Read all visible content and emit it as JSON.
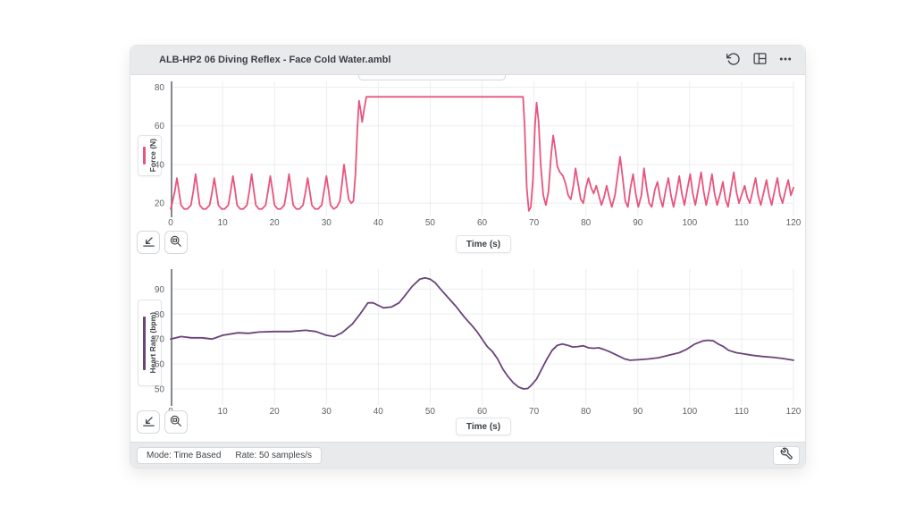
{
  "window": {
    "title": "ALB-HP2 06 Diving Reflex - Face Cold Water.ambl"
  },
  "footer": {
    "mode_label": "Mode: Time Based",
    "rate_label": "Rate: 50 samples/s"
  },
  "colors": {
    "header_bg": "#e9eaec",
    "force_accent": "#e8547e",
    "heart_rate_accent": "#6a4378"
  },
  "icons": {
    "document": "page-outline",
    "undo": "rotate-ccw-arrow",
    "layout": "split-pane",
    "more": "ellipsis",
    "autoscale": "arrow-to-axes-corner",
    "zoom_select": "magnifier-with-rect",
    "wrench": "wrench"
  },
  "chart_data": [
    {
      "type": "line",
      "ylabel": "Force (N)",
      "xlabel": "Time (s)",
      "xlim": [
        0,
        120
      ],
      "ylim": [
        15,
        83
      ],
      "x_ticks": [
        0,
        10,
        20,
        30,
        40,
        50,
        60,
        70,
        80,
        90,
        100,
        110,
        120
      ],
      "y_ticks": [
        20,
        40,
        60,
        80
      ],
      "grid": true,
      "legend_position": "left",
      "series": [
        {
          "name": "Force",
          "color": "#e8547e",
          "points": [
            [
              0,
              17
            ],
            [
              0.3,
              20
            ],
            [
              0.8,
              26
            ],
            [
              1.2,
              33
            ],
            [
              1.6,
              26
            ],
            [
              2,
              19
            ],
            [
              2.6,
              17
            ],
            [
              3.2,
              17
            ],
            [
              3.9,
              19
            ],
            [
              4.4,
              27
            ],
            [
              4.8,
              35
            ],
            [
              5.2,
              27
            ],
            [
              5.6,
              19
            ],
            [
              6.2,
              17
            ],
            [
              6.8,
              17
            ],
            [
              7.5,
              19
            ],
            [
              8,
              26
            ],
            [
              8.4,
              33
            ],
            [
              8.8,
              26
            ],
            [
              9.2,
              19
            ],
            [
              9.8,
              17
            ],
            [
              10.4,
              17
            ],
            [
              11.1,
              19
            ],
            [
              11.6,
              27
            ],
            [
              12,
              34
            ],
            [
              12.4,
              27
            ],
            [
              12.8,
              19
            ],
            [
              13.4,
              17
            ],
            [
              14,
              17
            ],
            [
              14.7,
              19
            ],
            [
              15.2,
              27
            ],
            [
              15.6,
              35
            ],
            [
              16,
              27
            ],
            [
              16.4,
              19
            ],
            [
              17,
              17
            ],
            [
              17.6,
              17
            ],
            [
              18.3,
              19
            ],
            [
              18.8,
              27
            ],
            [
              19.2,
              34
            ],
            [
              19.6,
              27
            ],
            [
              20,
              19
            ],
            [
              20.6,
              17
            ],
            [
              21.2,
              17
            ],
            [
              21.9,
              19
            ],
            [
              22.4,
              27
            ],
            [
              22.8,
              35
            ],
            [
              23.2,
              27
            ],
            [
              23.6,
              19
            ],
            [
              24.2,
              17
            ],
            [
              24.8,
              17
            ],
            [
              25.5,
              19
            ],
            [
              26,
              26
            ],
            [
              26.4,
              33
            ],
            [
              26.8,
              26
            ],
            [
              27.2,
              19
            ],
            [
              27.8,
              17
            ],
            [
              28.4,
              17
            ],
            [
              29.1,
              19
            ],
            [
              29.6,
              27
            ],
            [
              30,
              34
            ],
            [
              30.4,
              27
            ],
            [
              30.8,
              19
            ],
            [
              31.4,
              17
            ],
            [
              32,
              18
            ],
            [
              32.6,
              21
            ],
            [
              33,
              30
            ],
            [
              33.4,
              40
            ],
            [
              33.9,
              30
            ],
            [
              34.3,
              22
            ],
            [
              34.8,
              20
            ],
            [
              35.2,
              21
            ],
            [
              35.6,
              35
            ],
            [
              36,
              60
            ],
            [
              36.3,
              73
            ],
            [
              36.6,
              68
            ],
            [
              36.9,
              62
            ],
            [
              37.3,
              69
            ],
            [
              37.7,
              75
            ],
            [
              67.9,
              75
            ],
            [
              68.2,
              60
            ],
            [
              68.6,
              28
            ],
            [
              69,
              16
            ],
            [
              69.4,
              18
            ],
            [
              69.8,
              32
            ],
            [
              70.2,
              60
            ],
            [
              70.5,
              72
            ],
            [
              70.9,
              62
            ],
            [
              71.3,
              40
            ],
            [
              71.8,
              24
            ],
            [
              72.3,
              19
            ],
            [
              72.8,
              26
            ],
            [
              73.3,
              45
            ],
            [
              73.7,
              55
            ],
            [
              74.1,
              48
            ],
            [
              74.5,
              39
            ],
            [
              75,
              36
            ],
            [
              75.6,
              34
            ],
            [
              76.1,
              30
            ],
            [
              76.6,
              24
            ],
            [
              77.1,
              22
            ],
            [
              77.6,
              29
            ],
            [
              78,
              38
            ],
            [
              78.5,
              30
            ],
            [
              79,
              22
            ],
            [
              79.5,
              20
            ],
            [
              80,
              28
            ],
            [
              80.5,
              33
            ],
            [
              81,
              28
            ],
            [
              81.5,
              25
            ],
            [
              82,
              29
            ],
            [
              82.5,
              24
            ],
            [
              83,
              19
            ],
            [
              83.5,
              23
            ],
            [
              84,
              29
            ],
            [
              84.5,
              23
            ],
            [
              85,
              18
            ],
            [
              85.6,
              24
            ],
            [
              86.1,
              34
            ],
            [
              86.6,
              44
            ],
            [
              87.1,
              33
            ],
            [
              87.6,
              21
            ],
            [
              88.1,
              18
            ],
            [
              88.6,
              28
            ],
            [
              89.1,
              35
            ],
            [
              89.6,
              25
            ],
            [
              90.1,
              18
            ],
            [
              90.7,
              24
            ],
            [
              91.2,
              38
            ],
            [
              91.7,
              28
            ],
            [
              92.2,
              20
            ],
            [
              92.7,
              18
            ],
            [
              93.3,
              27
            ],
            [
              93.8,
              31
            ],
            [
              94.3,
              23
            ],
            [
              94.8,
              18
            ],
            [
              95.4,
              27
            ],
            [
              95.9,
              33
            ],
            [
              96.4,
              24
            ],
            [
              96.9,
              18
            ],
            [
              97.5,
              26
            ],
            [
              98,
              34
            ],
            [
              98.5,
              25
            ],
            [
              99,
              19
            ],
            [
              99.6,
              28
            ],
            [
              100.1,
              35
            ],
            [
              100.6,
              25
            ],
            [
              101.1,
              19
            ],
            [
              101.7,
              28
            ],
            [
              102.2,
              36
            ],
            [
              102.7,
              26
            ],
            [
              103.2,
              19
            ],
            [
              103.8,
              27
            ],
            [
              104.3,
              35
            ],
            [
              104.8,
              25
            ],
            [
              105.3,
              19
            ],
            [
              105.9,
              25
            ],
            [
              106.4,
              31
            ],
            [
              106.9,
              22
            ],
            [
              107.4,
              18
            ],
            [
              108,
              28
            ],
            [
              108.5,
              36
            ],
            [
              109,
              26
            ],
            [
              109.5,
              20
            ],
            [
              110.1,
              25
            ],
            [
              110.6,
              29
            ],
            [
              111.1,
              23
            ],
            [
              111.6,
              20
            ],
            [
              112.2,
              27
            ],
            [
              112.7,
              33
            ],
            [
              113.2,
              24
            ],
            [
              113.7,
              19
            ],
            [
              114.3,
              26
            ],
            [
              114.8,
              32
            ],
            [
              115.3,
              24
            ],
            [
              115.8,
              19
            ],
            [
              116.4,
              27
            ],
            [
              116.9,
              33
            ],
            [
              117.4,
              24
            ],
            [
              117.9,
              20
            ],
            [
              118.5,
              27
            ],
            [
              119,
              32
            ],
            [
              119.5,
              24
            ],
            [
              120,
              28
            ]
          ]
        }
      ]
    },
    {
      "type": "line",
      "ylabel": "Heart Rate (bpm)",
      "xlabel": "Time (s)",
      "xlim": [
        0,
        120
      ],
      "ylim": [
        45,
        98
      ],
      "x_ticks": [
        0,
        10,
        20,
        30,
        40,
        50,
        60,
        70,
        80,
        90,
        100,
        110,
        120
      ],
      "y_ticks": [
        50,
        60,
        70,
        80,
        90
      ],
      "grid": true,
      "legend_position": "left",
      "series": [
        {
          "name": "Heart Rate",
          "color": "#6a4378",
          "points": [
            [
              0,
              70
            ],
            [
              2,
              71
            ],
            [
              4,
              70.5
            ],
            [
              6,
              70.5
            ],
            [
              8,
              70
            ],
            [
              10,
              71.5
            ],
            [
              13,
              72.5
            ],
            [
              15,
              72.3
            ],
            [
              17,
              72.8
            ],
            [
              20,
              73
            ],
            [
              23,
              73
            ],
            [
              26,
              73.5
            ],
            [
              28,
              73
            ],
            [
              30,
              71.5
            ],
            [
              31.5,
              71
            ],
            [
              33,
              72.5
            ],
            [
              35,
              76
            ],
            [
              36.5,
              80
            ],
            [
              38,
              84.5
            ],
            [
              39,
              84.5
            ],
            [
              40,
              83.5
            ],
            [
              41,
              82.5
            ],
            [
              42.5,
              82.8
            ],
            [
              44,
              84.5
            ],
            [
              45,
              87
            ],
            [
              46.5,
              91
            ],
            [
              48,
              94
            ],
            [
              49,
              94.5
            ],
            [
              50,
              94
            ],
            [
              51,
              92.5
            ],
            [
              52,
              90
            ],
            [
              53.5,
              86.5
            ],
            [
              55,
              83
            ],
            [
              56.5,
              79
            ],
            [
              58,
              75.5
            ],
            [
              59,
              73
            ],
            [
              60,
              70
            ],
            [
              61,
              67
            ],
            [
              62,
              65
            ],
            [
              63,
              62
            ],
            [
              64,
              58
            ],
            [
              65,
              55
            ],
            [
              66,
              52.5
            ],
            [
              67,
              50.8
            ],
            [
              68,
              50
            ],
            [
              68.8,
              50.2
            ],
            [
              69.5,
              51.5
            ],
            [
              70.5,
              54
            ],
            [
              71.5,
              58
            ],
            [
              72.5,
              62
            ],
            [
              73.5,
              65.5
            ],
            [
              74.5,
              67.5
            ],
            [
              75.5,
              68
            ],
            [
              76.5,
              67.5
            ],
            [
              77.5,
              66.8
            ],
            [
              78.5,
              67
            ],
            [
              79.5,
              67.3
            ],
            [
              80.5,
              66.5
            ],
            [
              81.5,
              66.3
            ],
            [
              82.5,
              66.5
            ],
            [
              83.5,
              65.8
            ],
            [
              84.5,
              65
            ],
            [
              85.5,
              64
            ],
            [
              86.5,
              63
            ],
            [
              87.5,
              62
            ],
            [
              88.5,
              61.5
            ],
            [
              90,
              61.7
            ],
            [
              92,
              62
            ],
            [
              94,
              62.5
            ],
            [
              96,
              63.5
            ],
            [
              98,
              64.5
            ],
            [
              99.5,
              66
            ],
            [
              101,
              68
            ],
            [
              102.5,
              69.2
            ],
            [
              103.5,
              69.5
            ],
            [
              104.5,
              69.3
            ],
            [
              105.5,
              68
            ],
            [
              106.5,
              67
            ],
            [
              107.5,
              65.5
            ],
            [
              109,
              64.5
            ],
            [
              110.5,
              64
            ],
            [
              112,
              63.5
            ],
            [
              114,
              63
            ],
            [
              116,
              62.7
            ],
            [
              118,
              62.2
            ],
            [
              120,
              61.5
            ]
          ]
        }
      ]
    }
  ]
}
